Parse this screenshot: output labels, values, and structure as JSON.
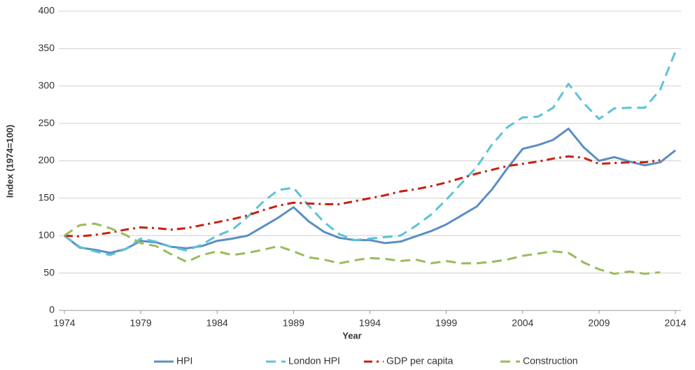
{
  "chart_data": {
    "type": "line",
    "x_label": "Year",
    "y_label": "Index (1974=100)",
    "x": [
      1974,
      1975,
      1976,
      1977,
      1978,
      1979,
      1980,
      1981,
      1982,
      1983,
      1984,
      1985,
      1986,
      1987,
      1988,
      1989,
      1990,
      1991,
      1992,
      1993,
      1994,
      1995,
      1996,
      1997,
      1998,
      1999,
      2000,
      2001,
      2002,
      2003,
      2004,
      2005,
      2006,
      2007,
      2008,
      2009,
      2010,
      2011,
      2012,
      2013,
      2014
    ],
    "xlim": [
      1974,
      2014
    ],
    "xticks": [
      1974,
      1979,
      1984,
      1989,
      1994,
      1999,
      2004,
      2009,
      2014
    ],
    "ylim": [
      0,
      400
    ],
    "yticks": [
      0,
      50,
      100,
      150,
      200,
      250,
      300,
      350,
      400
    ],
    "grid": true,
    "legend": "bottom",
    "series": [
      {
        "name": "HPI",
        "color": "#5b8ec4",
        "dash": "solid",
        "values": [
          100,
          84,
          81,
          77,
          82,
          93,
          91,
          85,
          83,
          86,
          93,
          96,
          100,
          112,
          124,
          138,
          119,
          105,
          97,
          94,
          94,
          90,
          92,
          99,
          106,
          115,
          127,
          139,
          162,
          190,
          216,
          221,
          228,
          243,
          218,
          200,
          205,
          199,
          194,
          198,
          214
        ]
      },
      {
        "name": "London HPI",
        "color": "#5bc4d6",
        "dash": "dashed",
        "values": [
          100,
          85,
          79,
          74,
          82,
          96,
          92,
          85,
          80,
          88,
          100,
          108,
          125,
          145,
          161,
          164,
          140,
          118,
          102,
          94,
          96,
          98,
          100,
          113,
          128,
          148,
          170,
          192,
          222,
          245,
          258,
          259,
          271,
          303,
          277,
          256,
          270,
          271,
          271,
          295,
          346
        ]
      },
      {
        "name": "GDP per capita",
        "color": "#c8200e",
        "dash": "dashdot",
        "values": [
          100,
          99,
          101,
          104,
          108,
          111,
          110,
          108,
          110,
          114,
          118,
          122,
          127,
          134,
          140,
          144,
          143,
          142,
          142,
          146,
          150,
          154,
          159,
          162,
          166,
          171,
          177,
          183,
          188,
          193,
          196,
          199,
          203,
          206,
          204,
          196,
          197,
          198,
          198,
          201,
          null
        ]
      },
      {
        "name": "Construction",
        "color": "#9bbb59",
        "dash": "dashed",
        "values": [
          100,
          114,
          116,
          110,
          101,
          90,
          86,
          75,
          65,
          74,
          79,
          74,
          77,
          81,
          86,
          79,
          71,
          68,
          63,
          67,
          70,
          69,
          66,
          68,
          63,
          66,
          63,
          63,
          65,
          68,
          73,
          76,
          79,
          77,
          64,
          55,
          49,
          52,
          49,
          51,
          null
        ]
      }
    ]
  }
}
